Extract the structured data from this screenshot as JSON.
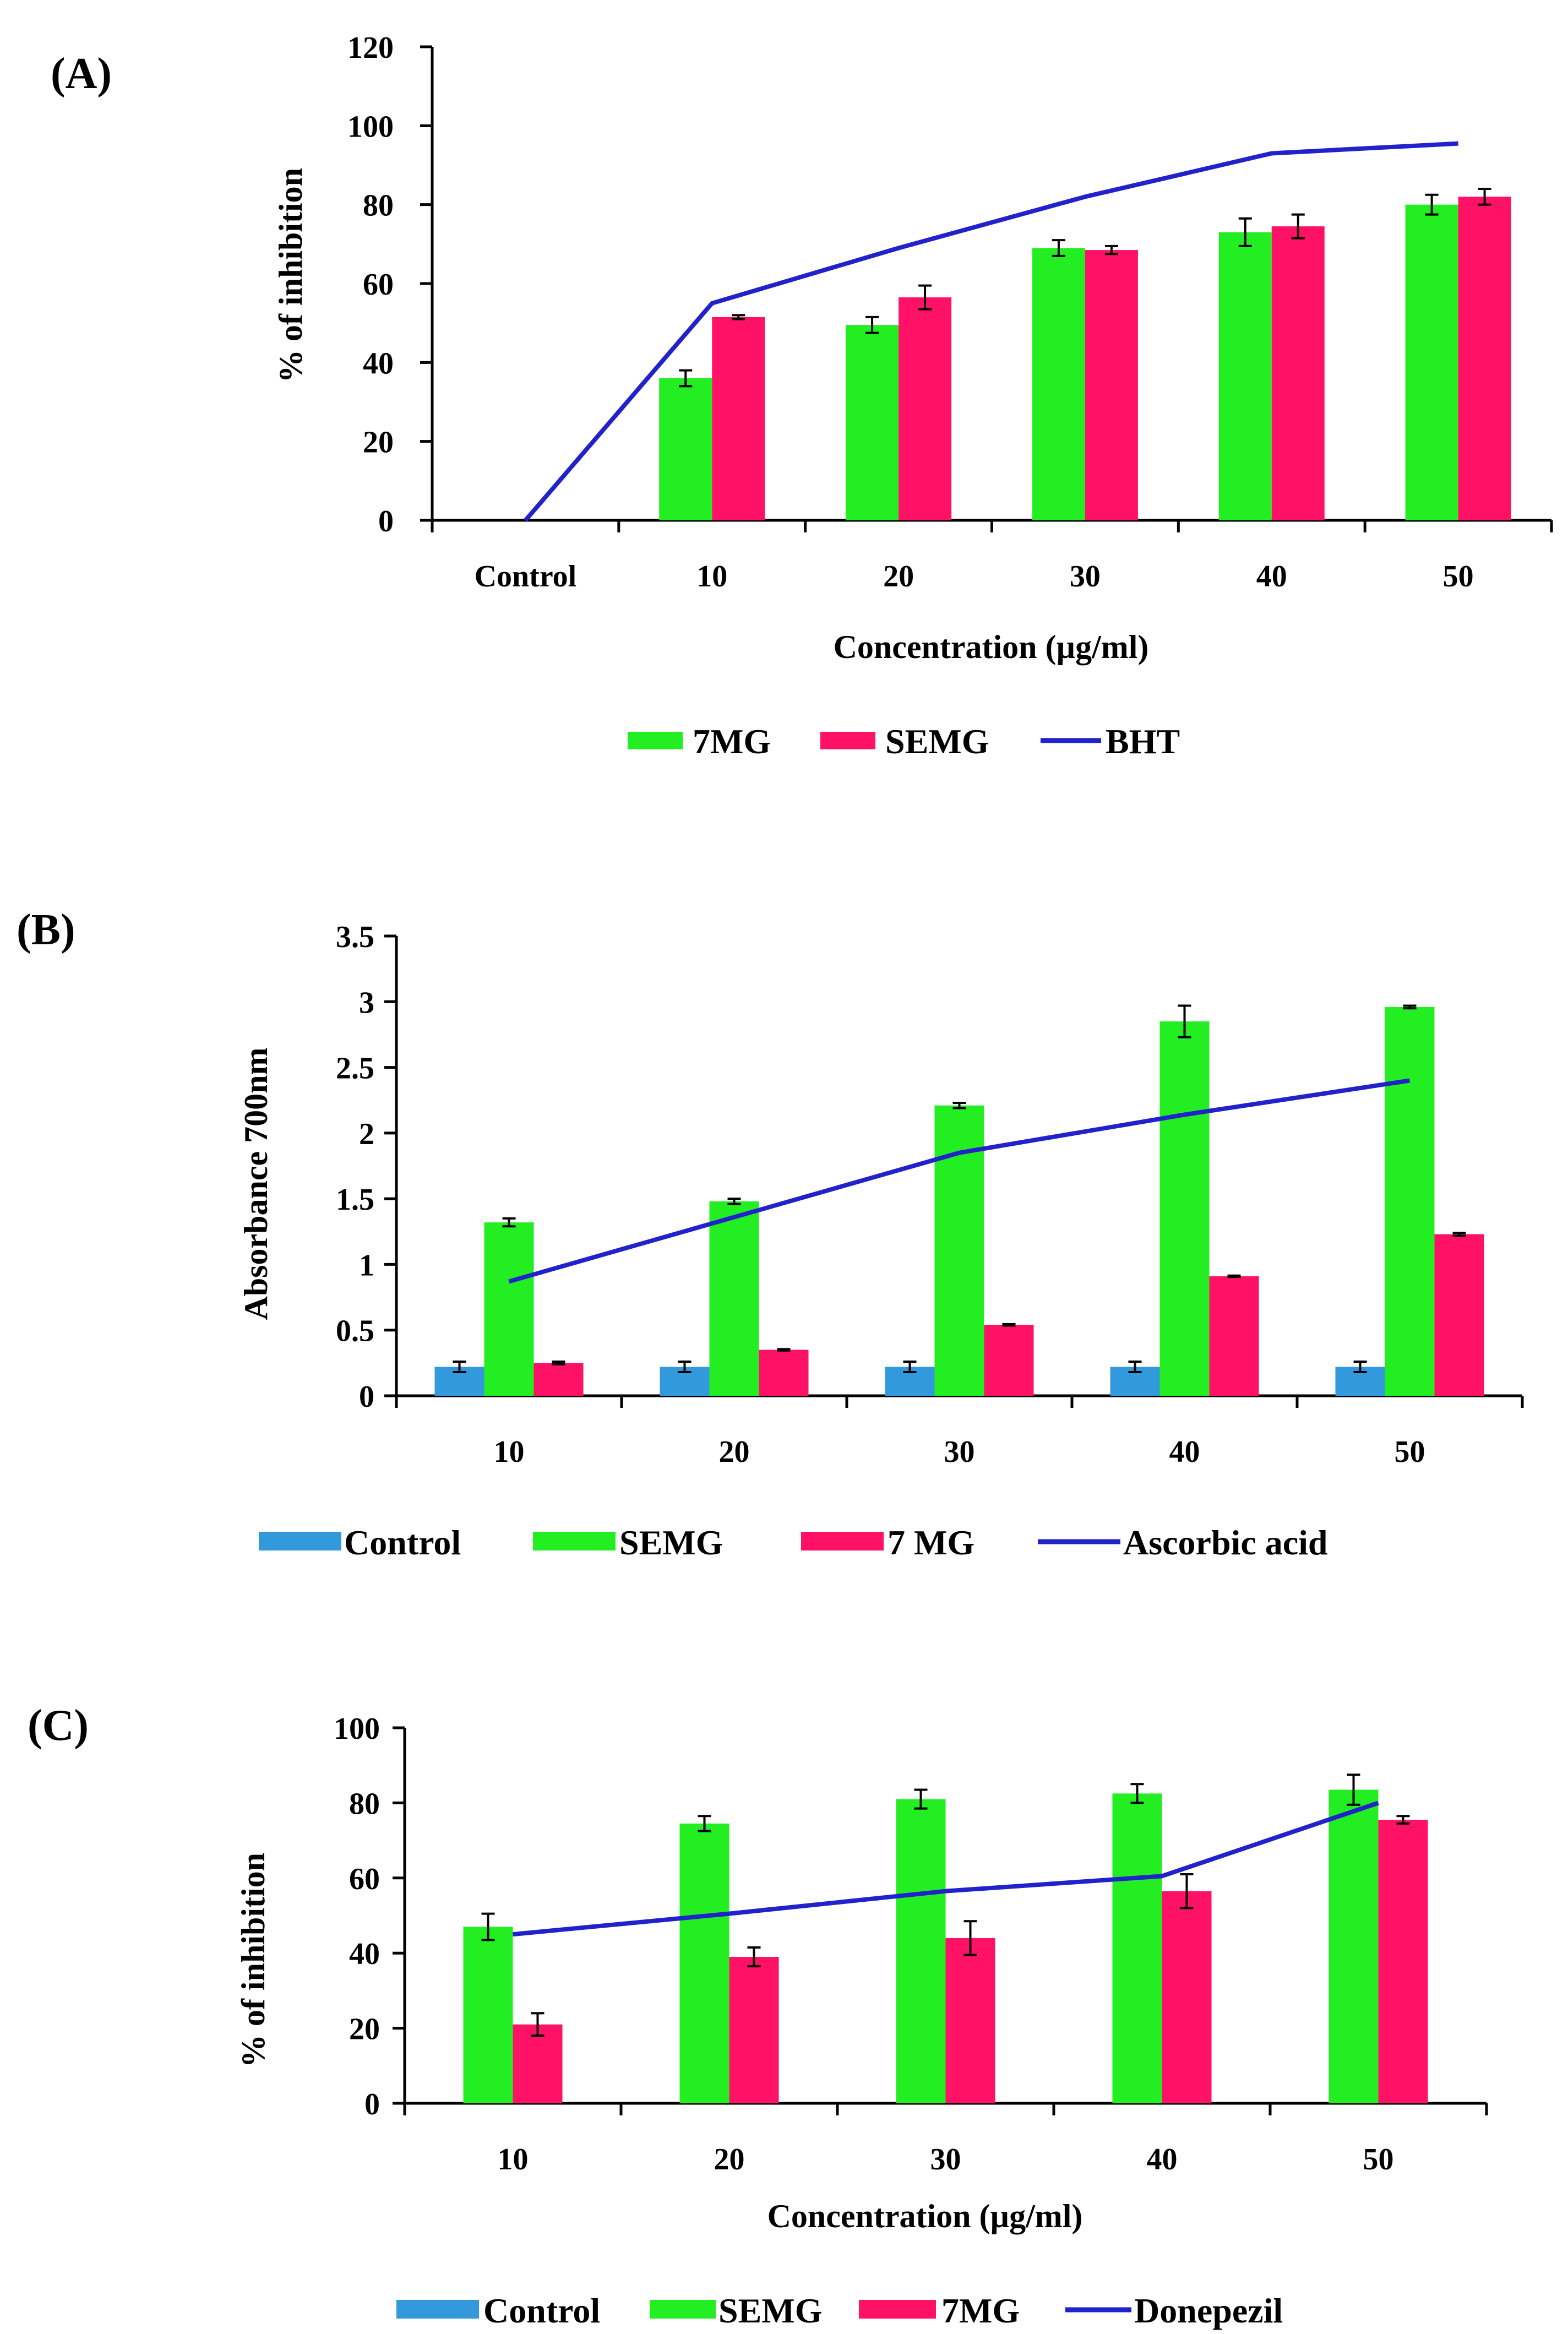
{
  "chart_data": [
    {
      "panel": "(A)",
      "type": "bar",
      "categories": [
        "Control",
        "10",
        "20",
        "30",
        "40",
        "50"
      ],
      "xlabel": "Concentration (µg/ml)",
      "ylabel": "% of inhibition",
      "ylim": [
        0,
        120
      ],
      "yticks": [
        "0",
        "20",
        "40",
        "60",
        "80",
        "100",
        "120"
      ],
      "series": [
        {
          "name": "7MG",
          "kind": "bar",
          "color": "#22ee22",
          "values": [
            null,
            36,
            49.5,
            69,
            73,
            80
          ],
          "errors": [
            null,
            2,
            2,
            2,
            3.5,
            2.5
          ]
        },
        {
          "name": "SEMG",
          "kind": "bar",
          "color": "#ff1166",
          "values": [
            null,
            51.5,
            56.5,
            68.5,
            74.5,
            82
          ],
          "errors": [
            null,
            0.5,
            3,
            1,
            3,
            2
          ]
        },
        {
          "name": "BHT",
          "kind": "line",
          "color": "#2222cc",
          "values": [
            0,
            55,
            69,
            82,
            93,
            95.5
          ],
          "errors": null
        }
      ],
      "legend": [
        "7MG",
        "SEMG",
        "BHT"
      ],
      "legend_position": "bottom"
    },
    {
      "panel": "(B)",
      "type": "bar",
      "categories": [
        "10",
        "20",
        "30",
        "40",
        "50"
      ],
      "xlabel": "",
      "ylabel": "Absorbance 700nm",
      "ylim": [
        0,
        3.5
      ],
      "yticks": [
        "0",
        "0.5",
        "1",
        "1.5",
        "2",
        "2.5",
        "3",
        "3.5"
      ],
      "series": [
        {
          "name": "Control",
          "kind": "bar",
          "color": "#3399dd",
          "values": [
            0.22,
            0.22,
            0.22,
            0.22,
            0.22
          ],
          "errors": [
            0.04,
            0.04,
            0.04,
            0.04,
            0.04
          ]
        },
        {
          "name": "SEMG",
          "kind": "bar",
          "color": "#22ee22",
          "values": [
            1.32,
            1.48,
            2.21,
            2.85,
            2.96
          ],
          "errors": [
            0.03,
            0.02,
            0.02,
            0.12,
            0.01
          ]
        },
        {
          "name": "7 MG",
          "kind": "bar",
          "color": "#ff1166",
          "values": [
            0.25,
            0.35,
            0.54,
            0.91,
            1.23
          ],
          "errors": [
            0.01,
            0.005,
            0.005,
            0.005,
            0.01
          ]
        },
        {
          "name": "Ascorbic acid",
          "kind": "line",
          "color": "#2222cc",
          "values": [
            0.87,
            1.36,
            1.85,
            2.14,
            2.4
          ],
          "errors": null
        }
      ],
      "legend": [
        "Control",
        "SEMG",
        "7 MG",
        "Ascorbic acid"
      ],
      "legend_position": "bottom"
    },
    {
      "panel": "(C)",
      "type": "bar",
      "categories": [
        "10",
        "20",
        "30",
        "40",
        "50"
      ],
      "xlabel": "Concentration (µg/ml)",
      "ylabel": "% of inhibition",
      "ylim": [
        0,
        100
      ],
      "yticks": [
        "0",
        "20",
        "40",
        "60",
        "80",
        "100"
      ],
      "series": [
        {
          "name": "SEMG",
          "kind": "bar",
          "color": "#22ee22",
          "values": [
            47,
            74.5,
            81,
            82.5,
            83.5
          ],
          "errors": [
            3.5,
            2,
            2.5,
            2.5,
            4
          ]
        },
        {
          "name": "7MG",
          "kind": "bar",
          "color": "#ff1166",
          "values": [
            21,
            39,
            44,
            56.5,
            75.5
          ],
          "errors": [
            3,
            2.5,
            4.5,
            4.5,
            1
          ]
        },
        {
          "name": "Donepezil",
          "kind": "line",
          "color": "#2222cc",
          "values": [
            45,
            50.5,
            56.5,
            60.5,
            80
          ],
          "errors": null
        }
      ],
      "legend": [
        "Control",
        "SEMG",
        "7MG",
        "Donepezil"
      ],
      "legend_colors": [
        "#3399dd",
        "#22ee22",
        "#ff1166",
        "#2222cc"
      ],
      "legend_position": "bottom"
    }
  ]
}
